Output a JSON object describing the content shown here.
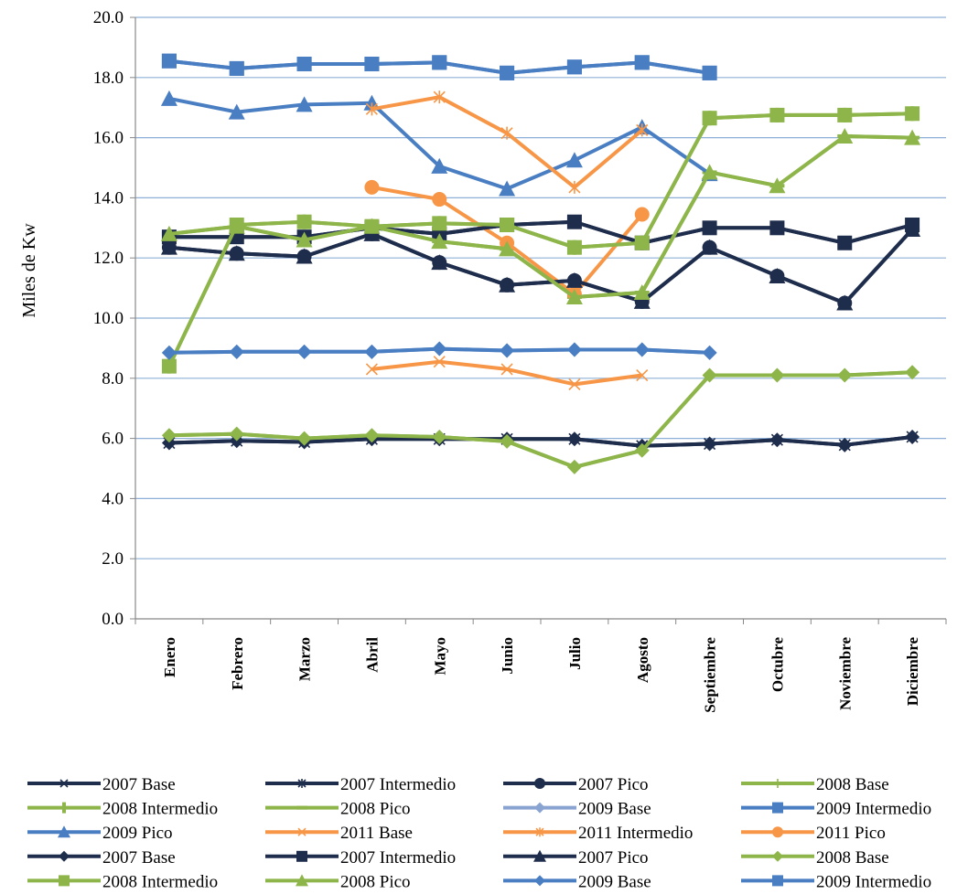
{
  "chart_data": {
    "type": "line",
    "title": "",
    "xlabel": "",
    "ylabel": "Miles de Kw",
    "ylim": [
      0,
      20
    ],
    "yticks": [
      "0.0",
      "2.0",
      "4.0",
      "6.0",
      "8.0",
      "10.0",
      "12.0",
      "14.0",
      "16.0",
      "18.0",
      "20.0"
    ],
    "grid": true,
    "legend_position": "bottom",
    "categories": [
      "Enero",
      "Febrero",
      "Marzo",
      "Abril",
      "Mayo",
      "Junio",
      "Julio",
      "Agosto",
      "Septiembre",
      "Octubre",
      "Noviembre",
      "Diciembre"
    ],
    "series": [
      {
        "name": "2007 Base",
        "color": "#1f2d4d",
        "marker": "x",
        "values": [
          5.85,
          5.92,
          5.88,
          5.98,
          5.98,
          5.98,
          5.98,
          5.75,
          5.82,
          5.95,
          5.78,
          6.05
        ]
      },
      {
        "name": "2007 Intermedio",
        "color": "#1f2d4d",
        "marker": "asterisk",
        "values": [
          12.7,
          12.7,
          12.7,
          13.0,
          12.8,
          13.1,
          13.2,
          12.5,
          13.0,
          13.0,
          12.5,
          13.1
        ]
      },
      {
        "name": "2007 Pico",
        "color": "#1f2d4d",
        "marker": "circle",
        "values": [
          12.35,
          12.15,
          12.05,
          12.8,
          11.85,
          11.1,
          11.25,
          10.55,
          12.35,
          11.4,
          10.5,
          12.95
        ]
      },
      {
        "name": "2008 Base",
        "color": "#8db54a",
        "marker": "plus",
        "values": [
          6.1,
          6.15,
          6.0,
          6.1,
          6.05,
          5.9,
          5.05,
          5.6,
          8.1,
          8.1,
          8.1,
          8.2
        ]
      },
      {
        "name": "2008 Intermedio",
        "color": "#8db54a",
        "marker": "bar",
        "values": [
          8.4,
          13.1,
          13.2,
          13.05,
          13.15,
          13.1,
          12.35,
          12.5,
          16.65,
          16.75,
          16.75,
          16.8
        ]
      },
      {
        "name": "2008 Pico",
        "color": "#8db54a",
        "marker": "dash",
        "values": [
          12.8,
          13.05,
          12.6,
          13.05,
          12.55,
          12.3,
          10.7,
          10.85,
          14.85,
          14.4,
          16.05,
          16.0
        ]
      },
      {
        "name": "2009 Base",
        "color": "#8aa4d1",
        "marker": "diamond",
        "values": [
          8.85,
          8.88,
          8.88,
          8.88,
          8.98,
          8.92,
          8.95,
          8.95,
          8.85,
          null,
          null,
          null
        ]
      },
      {
        "name": "2009 Intermedio",
        "color": "#4a7ec2",
        "marker": "square",
        "values": [
          18.55,
          18.3,
          18.45,
          18.45,
          18.5,
          18.15,
          18.35,
          18.5,
          18.15,
          null,
          null,
          null
        ]
      },
      {
        "name": "2009 Pico",
        "color": "#4a7ec2",
        "marker": "triangle",
        "values": [
          17.3,
          16.85,
          17.1,
          17.15,
          15.05,
          14.3,
          15.25,
          16.35,
          14.8,
          null,
          null,
          null
        ]
      },
      {
        "name": "2011 Base",
        "color": "#f79646",
        "marker": "x",
        "values": [
          null,
          null,
          null,
          8.3,
          8.55,
          8.3,
          7.8,
          8.1,
          null,
          null,
          null,
          null
        ]
      },
      {
        "name": "2011 Intermedio",
        "color": "#f79646",
        "marker": "asterisk",
        "values": [
          null,
          null,
          null,
          16.95,
          17.35,
          16.15,
          14.35,
          16.25,
          null,
          null,
          null,
          null
        ]
      },
      {
        "name": "2011 Pico",
        "color": "#f79646",
        "marker": "circle",
        "values": [
          null,
          null,
          null,
          14.35,
          13.95,
          12.5,
          10.8,
          13.45,
          null,
          null,
          null,
          null
        ]
      },
      {
        "name": "2007 Base",
        "color": "#1f2d4d",
        "marker": "diamond",
        "values": [
          5.85,
          5.92,
          5.88,
          5.98,
          5.98,
          5.98,
          5.98,
          5.75,
          5.82,
          5.95,
          5.78,
          6.05
        ]
      },
      {
        "name": "2007 Intermedio",
        "color": "#1f2d4d",
        "marker": "square",
        "values": [
          12.7,
          12.7,
          12.7,
          13.0,
          12.8,
          13.1,
          13.2,
          12.5,
          13.0,
          13.0,
          12.5,
          13.1
        ]
      },
      {
        "name": "2007 Pico",
        "color": "#1f2d4d",
        "marker": "triangle",
        "values": [
          12.35,
          12.15,
          12.05,
          12.8,
          11.85,
          11.1,
          11.25,
          10.55,
          12.35,
          11.4,
          10.5,
          12.95
        ]
      },
      {
        "name": "2008 Base",
        "color": "#8db54a",
        "marker": "diamond",
        "values": [
          6.1,
          6.15,
          6.0,
          6.1,
          6.05,
          5.9,
          5.05,
          5.6,
          8.1,
          8.1,
          8.1,
          8.2
        ]
      },
      {
        "name": "2008 Intermedio",
        "color": "#8db54a",
        "marker": "square",
        "values": [
          8.4,
          13.1,
          13.2,
          13.05,
          13.15,
          13.1,
          12.35,
          12.5,
          16.65,
          16.75,
          16.75,
          16.8
        ]
      },
      {
        "name": "2008 Pico",
        "color": "#8db54a",
        "marker": "triangle",
        "values": [
          12.8,
          13.05,
          12.6,
          13.05,
          12.55,
          12.3,
          10.7,
          10.85,
          14.85,
          14.4,
          16.05,
          16.0
        ]
      },
      {
        "name": "2009 Base",
        "color": "#4a7ec2",
        "marker": "diamond",
        "values": [
          8.85,
          8.88,
          8.88,
          8.88,
          8.98,
          8.92,
          8.95,
          8.95,
          8.85,
          null,
          null,
          null
        ]
      },
      {
        "name": "2009 Intermedio",
        "color": "#4a7ec2",
        "marker": "square",
        "values": [
          18.55,
          18.3,
          18.45,
          18.45,
          18.5,
          18.15,
          18.35,
          18.5,
          18.15,
          null,
          null,
          null
        ]
      }
    ]
  }
}
